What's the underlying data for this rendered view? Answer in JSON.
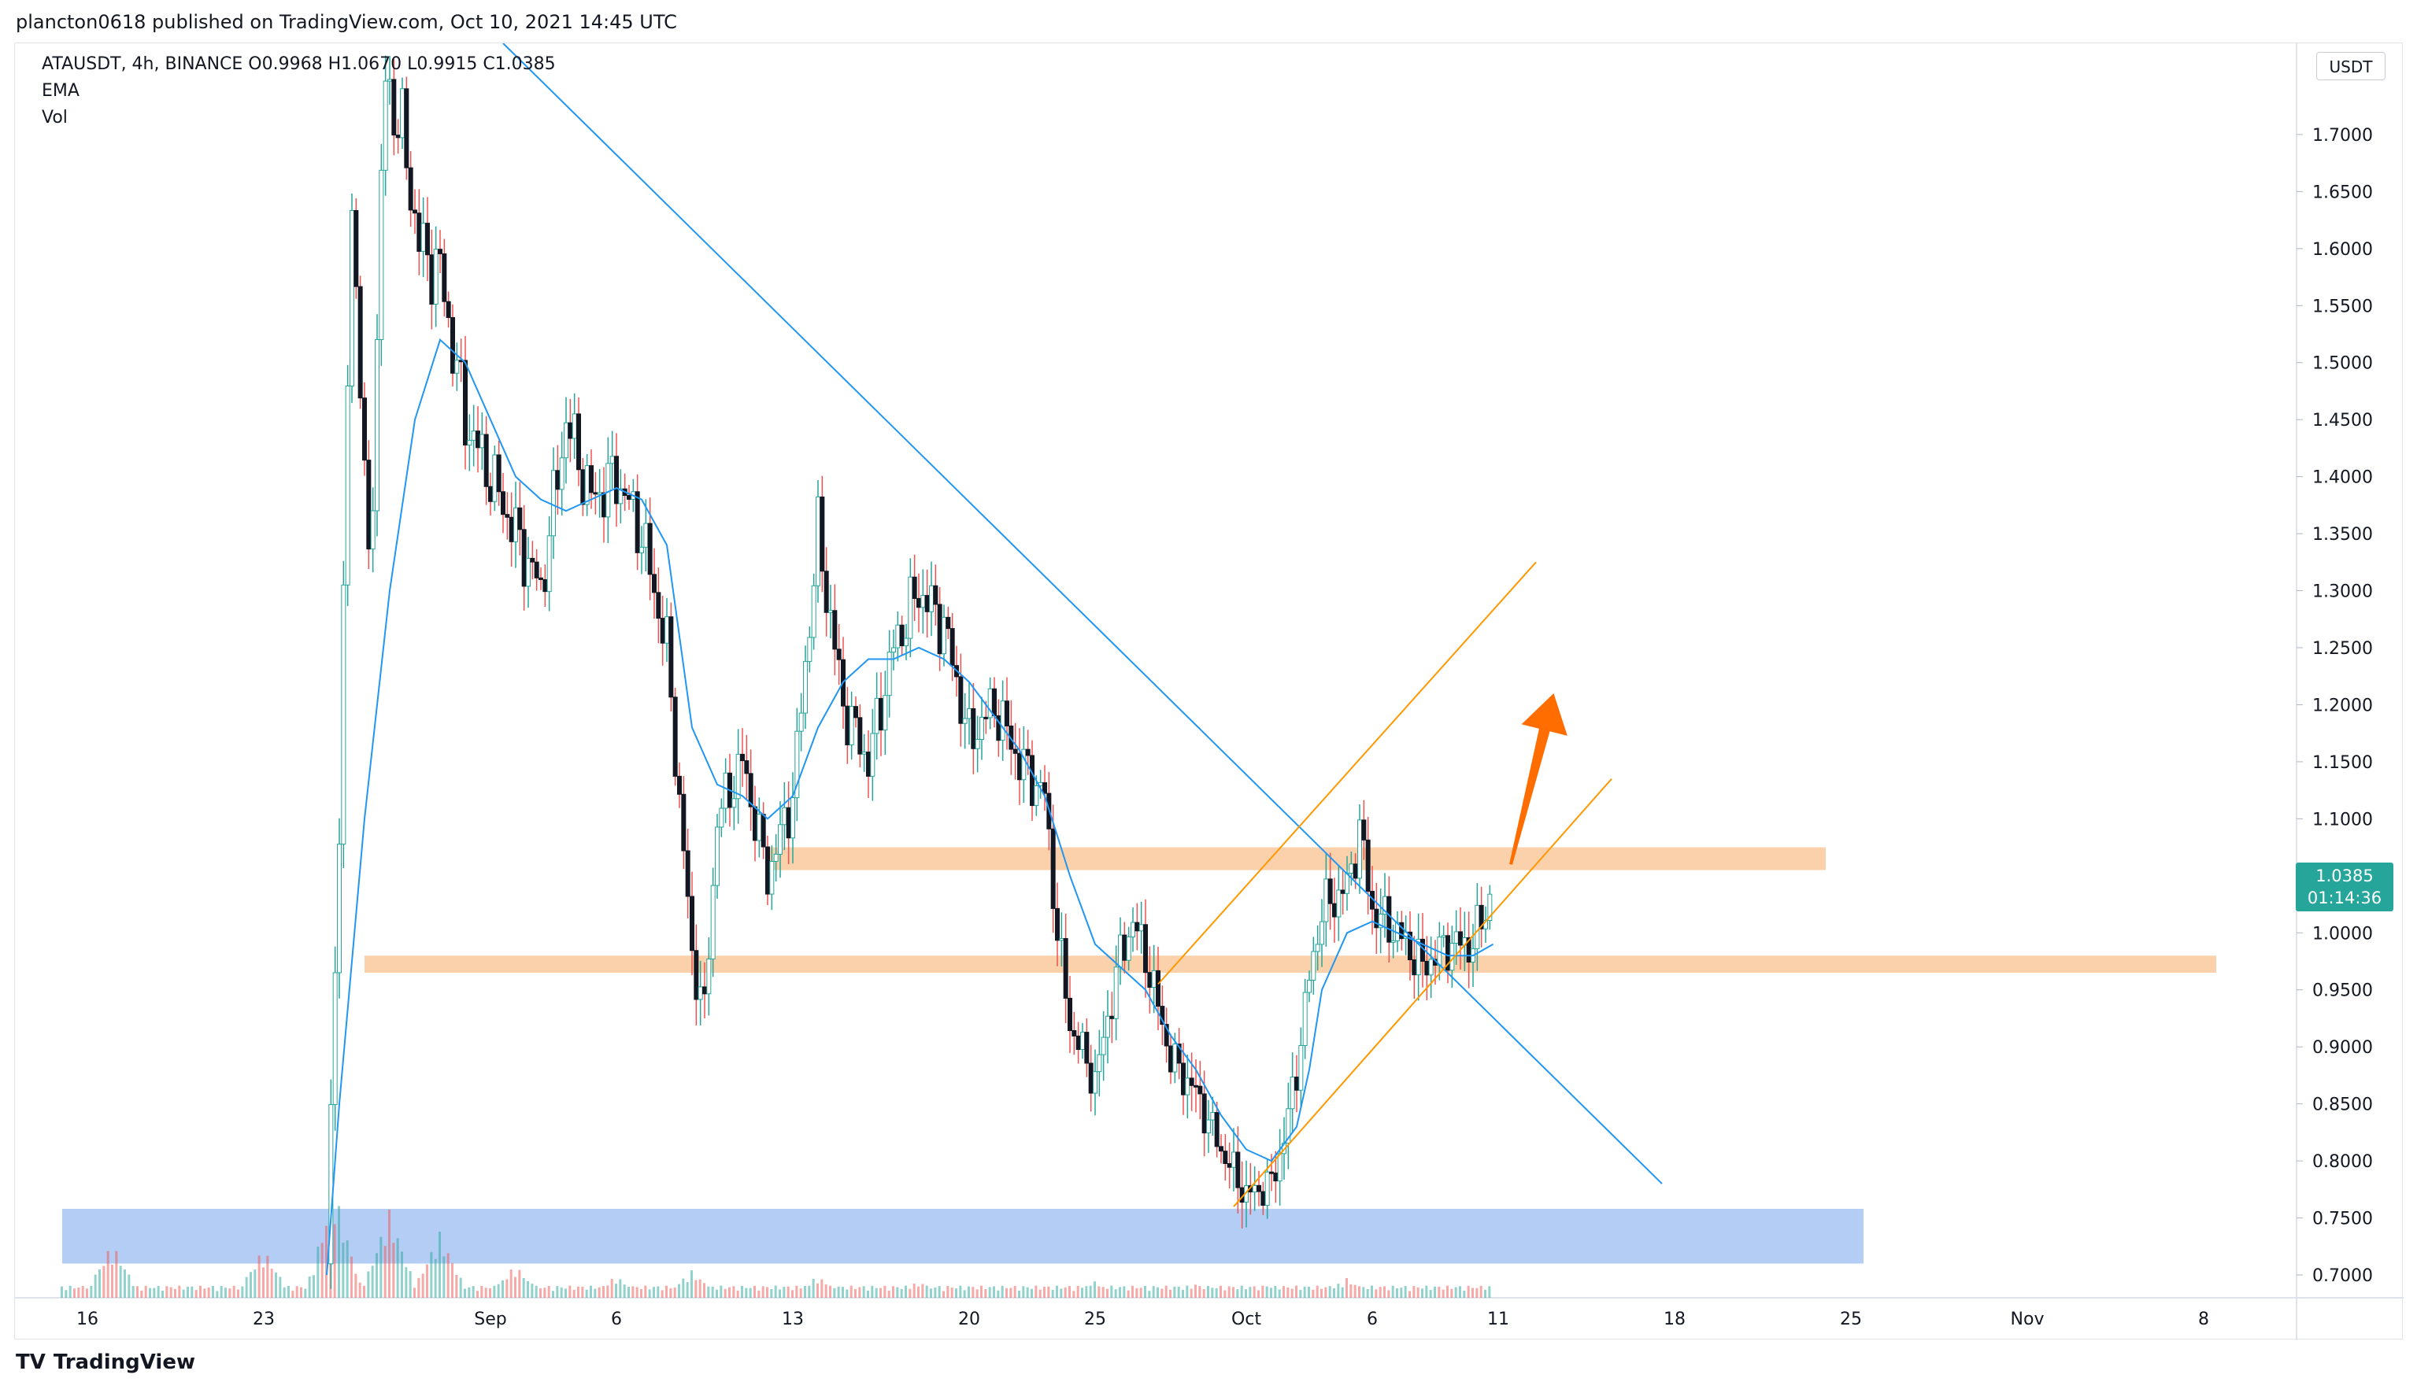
{
  "header": {
    "published": "plancton0618 published on TradingView.com, Oct 10, 2021 14:45 UTC"
  },
  "legend": {
    "symbol_line": "ATAUSDT, 4h, BINANCE  O0.9968  H1.0670  L0.9915  C1.0385",
    "ema_label": "EMA",
    "vol_label": "Vol"
  },
  "price_scale": {
    "unit": "USDT",
    "last_price": "1.0385",
    "countdown": "01:14:36"
  },
  "footer": {
    "brand": "TradingView"
  },
  "colors": {
    "up": "#26a69a",
    "down": "#ef5350",
    "ema": "#2196f3",
    "trendline": "#2196f3",
    "channel": "#ff9800",
    "zone": "#f9c99c",
    "demand": "#a7c4f2",
    "arrow": "#ff6d00",
    "candle_body_dark": "#131722"
  },
  "chart_data": {
    "type": "candlestick",
    "symbol": "ATAUSDT",
    "timeframe": "4h",
    "exchange": "BINANCE",
    "ohlc_last": {
      "open": 0.9968,
      "high": 1.067,
      "low": 0.9915,
      "close": 1.0385
    },
    "y_ticks": [
      "0.7000",
      "0.7500",
      "0.8000",
      "0.8500",
      "0.9000",
      "0.9500",
      "1.0000",
      "1.0500",
      "1.1000",
      "1.1500",
      "1.2000",
      "1.2500",
      "1.3000",
      "1.3500",
      "1.4000",
      "1.4500",
      "1.5000",
      "1.5500",
      "1.6000",
      "1.6500",
      "1.7000"
    ],
    "ylim": [
      0.68,
      1.78
    ],
    "x_ticks": [
      "16",
      "23",
      "Sep",
      "6",
      "13",
      "20",
      "25",
      "Oct",
      "6",
      "11",
      "18",
      "25",
      "Nov",
      "8"
    ],
    "x_tick_days": [
      0,
      7,
      16,
      21,
      28,
      35,
      40,
      46,
      51,
      56,
      63,
      70,
      77,
      84
    ],
    "price_path": [
      [
        -1,
        0.7
      ],
      [
        8,
        0.7
      ],
      [
        9.5,
        0.71
      ],
      [
        10,
        1.1
      ],
      [
        10.5,
        1.65
      ],
      [
        11.2,
        1.3
      ],
      [
        11.8,
        1.75
      ],
      [
        12.5,
        1.7
      ],
      [
        13.2,
        1.6
      ],
      [
        14,
        1.58
      ],
      [
        15,
        1.45
      ],
      [
        16,
        1.4
      ],
      [
        17,
        1.35
      ],
      [
        18,
        1.3
      ],
      [
        19,
        1.45
      ],
      [
        20,
        1.38
      ],
      [
        21,
        1.4
      ],
      [
        22,
        1.35
      ],
      [
        23,
        1.25
      ],
      [
        24,
        0.98
      ],
      [
        24.5,
        0.93
      ],
      [
        25,
        1.1
      ],
      [
        26,
        1.15
      ],
      [
        27,
        1.05
      ],
      [
        28,
        1.12
      ],
      [
        29,
        1.35
      ],
      [
        30,
        1.2
      ],
      [
        31,
        1.15
      ],
      [
        32,
        1.25
      ],
      [
        33,
        1.3
      ],
      [
        34,
        1.27
      ],
      [
        35,
        1.17
      ],
      [
        36,
        1.2
      ],
      [
        37,
        1.15
      ],
      [
        38,
        1.12
      ],
      [
        38.5,
        1.0
      ],
      [
        39,
        0.92
      ],
      [
        40,
        0.87
      ],
      [
        41,
        0.98
      ],
      [
        41.5,
        1.01
      ],
      [
        42,
        0.98
      ],
      [
        43,
        0.89
      ],
      [
        44,
        0.86
      ],
      [
        45,
        0.81
      ],
      [
        46,
        0.77
      ],
      [
        47,
        0.78
      ],
      [
        47.5,
        0.82
      ],
      [
        48,
        0.88
      ],
      [
        48.5,
        0.96
      ],
      [
        49,
        1.02
      ],
      [
        50,
        1.04
      ],
      [
        50.5,
        1.09
      ],
      [
        51,
        1.02
      ],
      [
        52,
        1.0
      ],
      [
        53,
        0.97
      ],
      [
        54,
        0.99
      ],
      [
        55,
        0.99
      ],
      [
        55.8,
        1.04
      ]
    ],
    "ema_path": [
      [
        9.5,
        0.7
      ],
      [
        10,
        0.85
      ],
      [
        11,
        1.1
      ],
      [
        12,
        1.3
      ],
      [
        13,
        1.45
      ],
      [
        14,
        1.52
      ],
      [
        15,
        1.5
      ],
      [
        16,
        1.45
      ],
      [
        17,
        1.4
      ],
      [
        18,
        1.38
      ],
      [
        19,
        1.37
      ],
      [
        20,
        1.38
      ],
      [
        21,
        1.39
      ],
      [
        22,
        1.38
      ],
      [
        23,
        1.34
      ],
      [
        24,
        1.18
      ],
      [
        25,
        1.13
      ],
      [
        26,
        1.12
      ],
      [
        27,
        1.1
      ],
      [
        28,
        1.12
      ],
      [
        29,
        1.18
      ],
      [
        30,
        1.22
      ],
      [
        31,
        1.24
      ],
      [
        32,
        1.24
      ],
      [
        33,
        1.25
      ],
      [
        34,
        1.24
      ],
      [
        35,
        1.22
      ],
      [
        36,
        1.19
      ],
      [
        37,
        1.16
      ],
      [
        38,
        1.12
      ],
      [
        39,
        1.05
      ],
      [
        40,
        0.99
      ],
      [
        41,
        0.97
      ],
      [
        42,
        0.95
      ],
      [
        43,
        0.91
      ],
      [
        44,
        0.88
      ],
      [
        45,
        0.84
      ],
      [
        46,
        0.81
      ],
      [
        47,
        0.8
      ],
      [
        48,
        0.83
      ],
      [
        48.5,
        0.88
      ],
      [
        49,
        0.95
      ],
      [
        50,
        1.0
      ],
      [
        51,
        1.01
      ],
      [
        52,
        1.0
      ],
      [
        53,
        0.99
      ],
      [
        54,
        0.98
      ],
      [
        55,
        0.98
      ],
      [
        55.8,
        0.99
      ]
    ],
    "volume_spikes": [
      [
        1,
        0.5
      ],
      [
        7,
        0.45
      ],
      [
        9.8,
        1.0
      ],
      [
        12,
        0.8
      ],
      [
        14,
        0.6
      ],
      [
        17,
        0.3
      ],
      [
        21,
        0.2
      ],
      [
        24,
        0.25
      ],
      [
        29,
        0.2
      ],
      [
        33,
        0.15
      ],
      [
        40,
        0.15
      ],
      [
        44,
        0.12
      ],
      [
        47,
        0.12
      ],
      [
        50,
        0.18
      ],
      [
        55.8,
        0.12
      ]
    ],
    "annotations": {
      "descending_trendline": {
        "from": [
          16.5,
          1.78
        ],
        "to": [
          62.5,
          0.78
        ]
      },
      "channel_upper": {
        "from": [
          42.5,
          0.955
        ],
        "to": [
          57.5,
          1.325
        ]
      },
      "channel_lower": {
        "from": [
          45.5,
          0.76
        ],
        "to": [
          60.5,
          1.135
        ]
      },
      "resistance_zone": {
        "x": [
          27,
          69
        ],
        "y": [
          1.055,
          1.075
        ]
      },
      "support_zone": {
        "x": [
          11,
          84.5
        ],
        "y": [
          0.965,
          0.98
        ]
      },
      "demand_zone": {
        "x": [
          -1,
          70.5
        ],
        "y": [
          0.71,
          0.758
        ]
      },
      "arrow": {
        "from": [
          56.5,
          1.06
        ],
        "to": [
          58.2,
          1.21
        ]
      }
    },
    "grid": false
  }
}
